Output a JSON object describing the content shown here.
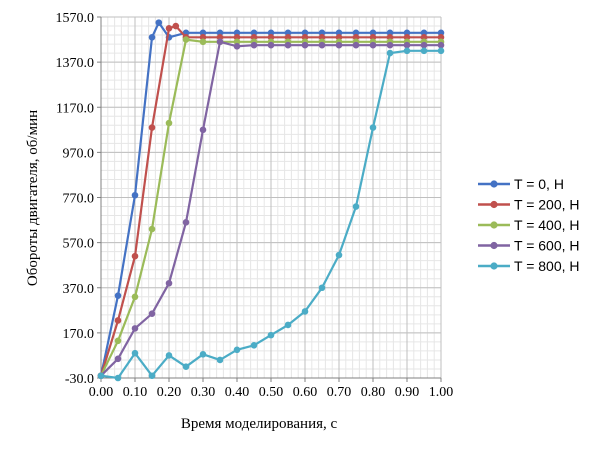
{
  "chart_data": {
    "type": "line",
    "xlabel": "Время моделирования, с",
    "ylabel": "Обороты двигателя, об/мин",
    "xlim": [
      0.0,
      1.0
    ],
    "ylim": [
      -30.0,
      1570.0
    ],
    "x_ticks": [
      "0.00",
      "0.10",
      "0.20",
      "0.30",
      "0.40",
      "0.50",
      "0.60",
      "0.70",
      "0.80",
      "0.90",
      "1.00"
    ],
    "y_ticks": [
      "-30.0",
      "170.0",
      "370.0",
      "570.0",
      "770.0",
      "970.0",
      "1170.0",
      "1370.0",
      "1570.0"
    ],
    "grid": true,
    "legend_position": "right",
    "series": [
      {
        "name": "T = 0, Н",
        "color": "#4472c4",
        "x": [
          0.0,
          0.05,
          0.1,
          0.15,
          0.17,
          0.2,
          0.25,
          0.3,
          0.35,
          0.4,
          0.45,
          0.5,
          0.55,
          0.6,
          0.65,
          0.7,
          0.75,
          0.8,
          0.85,
          0.9,
          0.95,
          1.0
        ],
        "y": [
          -20,
          335,
          780,
          1480,
          1545,
          1480,
          1500,
          1500,
          1500,
          1500,
          1500,
          1500,
          1500,
          1500,
          1500,
          1500,
          1500,
          1500,
          1500,
          1500,
          1500,
          1500
        ]
      },
      {
        "name": "T = 200, Н",
        "color": "#c0504d",
        "x": [
          0.0,
          0.05,
          0.1,
          0.15,
          0.2,
          0.22,
          0.25,
          0.3,
          0.35,
          0.4,
          0.45,
          0.5,
          0.55,
          0.6,
          0.65,
          0.7,
          0.75,
          0.8,
          0.85,
          0.9,
          0.95,
          1.0
        ],
        "y": [
          -20,
          225,
          510,
          1080,
          1520,
          1530,
          1480,
          1480,
          1480,
          1480,
          1480,
          1480,
          1480,
          1480,
          1480,
          1480,
          1480,
          1480,
          1480,
          1480,
          1480,
          1480
        ]
      },
      {
        "name": "T = 400, Н",
        "color": "#9bbb59",
        "x": [
          0.0,
          0.05,
          0.1,
          0.15,
          0.2,
          0.25,
          0.3,
          0.35,
          0.4,
          0.45,
          0.5,
          0.55,
          0.6,
          0.65,
          0.7,
          0.75,
          0.8,
          0.85,
          0.9,
          0.95,
          1.0
        ],
        "y": [
          -20,
          135,
          330,
          630,
          1100,
          1470,
          1460,
          1460,
          1460,
          1460,
          1460,
          1460,
          1460,
          1460,
          1460,
          1460,
          1460,
          1460,
          1460,
          1460,
          1460
        ]
      },
      {
        "name": "T = 600, Н",
        "color": "#8064a2",
        "x": [
          0.0,
          0.05,
          0.1,
          0.15,
          0.2,
          0.25,
          0.3,
          0.35,
          0.4,
          0.45,
          0.5,
          0.55,
          0.6,
          0.65,
          0.7,
          0.75,
          0.8,
          0.85,
          0.9,
          0.95,
          1.0
        ],
        "y": [
          -20,
          55,
          190,
          255,
          390,
          660,
          1070,
          1460,
          1440,
          1445,
          1445,
          1445,
          1445,
          1445,
          1445,
          1445,
          1445,
          1445,
          1445,
          1445,
          1445
        ]
      },
      {
        "name": "T = 800, Н",
        "color": "#4bacc6",
        "x": [
          0.0,
          0.05,
          0.1,
          0.15,
          0.2,
          0.25,
          0.3,
          0.35,
          0.4,
          0.45,
          0.5,
          0.55,
          0.6,
          0.65,
          0.7,
          0.75,
          0.8,
          0.85,
          0.9,
          0.95,
          1.0
        ],
        "y": [
          -20,
          -30,
          80,
          -20,
          70,
          20,
          75,
          50,
          95,
          115,
          160,
          205,
          265,
          370,
          515,
          730,
          1080,
          1410,
          1420,
          1420,
          1420
        ]
      }
    ]
  }
}
